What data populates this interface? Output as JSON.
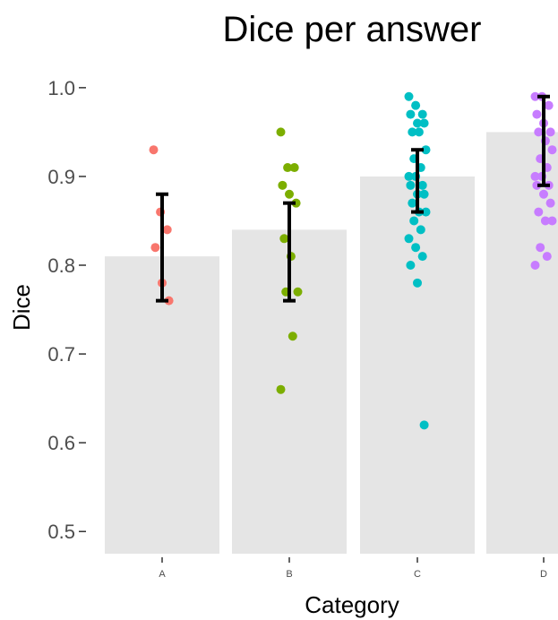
{
  "chart_data": {
    "type": "bar",
    "title": "Dice per answer",
    "xlabel": "Category",
    "ylabel": "Dice",
    "ylim": [
      0.475,
      1.015
    ],
    "yticks": [
      "0.5",
      "0.6",
      "0.7",
      "0.8",
      "0.9",
      "1.0"
    ],
    "ytick_values": [
      0.5,
      0.6,
      0.7,
      0.8,
      0.9,
      1.0
    ],
    "grid": false,
    "legend": "none",
    "categories": [
      "A",
      "B",
      "C",
      "D"
    ],
    "values": [
      0.81,
      0.84,
      0.9,
      0.95
    ],
    "error_bars": [
      {
        "low": 0.76,
        "high": 0.88
      },
      {
        "low": 0.76,
        "high": 0.87
      },
      {
        "low": 0.86,
        "high": 0.93
      },
      {
        "low": 0.89,
        "high": 0.99
      }
    ],
    "point_colors": [
      "#f8766d",
      "#7cae00",
      "#00bfc4",
      "#c77cff"
    ],
    "points": [
      [
        0.93,
        0.86,
        0.84,
        0.82,
        0.78,
        0.76
      ],
      [
        0.95,
        0.91,
        0.91,
        0.89,
        0.88,
        0.87,
        0.83,
        0.81,
        0.77,
        0.77,
        0.72,
        0.66
      ],
      [
        0.99,
        0.98,
        0.97,
        0.97,
        0.96,
        0.96,
        0.95,
        0.95,
        0.93,
        0.92,
        0.91,
        0.9,
        0.9,
        0.89,
        0.89,
        0.88,
        0.88,
        0.87,
        0.86,
        0.86,
        0.85,
        0.84,
        0.83,
        0.82,
        0.81,
        0.8,
        0.78,
        0.62
      ],
      [
        0.99,
        0.99,
        0.98,
        0.97,
        0.96,
        0.95,
        0.95,
        0.94,
        0.93,
        0.92,
        0.91,
        0.9,
        0.9,
        0.89,
        0.89,
        0.88,
        0.87,
        0.86,
        0.85,
        0.85,
        0.82,
        0.81,
        0.8
      ]
    ]
  }
}
